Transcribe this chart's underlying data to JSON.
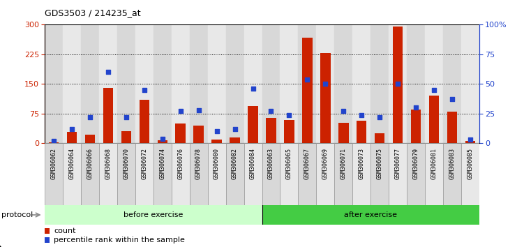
{
  "title": "GDS3503 / 214235_at",
  "categories": [
    "GSM306062",
    "GSM306064",
    "GSM306066",
    "GSM306068",
    "GSM306070",
    "GSM306072",
    "GSM306074",
    "GSM306076",
    "GSM306078",
    "GSM306080",
    "GSM306082",
    "GSM306084",
    "GSM306063",
    "GSM306065",
    "GSM306067",
    "GSM306069",
    "GSM306071",
    "GSM306073",
    "GSM306075",
    "GSM306077",
    "GSM306079",
    "GSM306081",
    "GSM306083",
    "GSM306085"
  ],
  "count_values": [
    3,
    28,
    22,
    140,
    30,
    110,
    8,
    50,
    45,
    10,
    14,
    95,
    65,
    58,
    268,
    228,
    52,
    57,
    25,
    295,
    85,
    120,
    80,
    5
  ],
  "percentile_values": [
    2,
    12,
    22,
    60,
    22,
    45,
    4,
    27,
    28,
    10,
    12,
    46,
    27,
    24,
    54,
    50,
    27,
    24,
    22,
    50,
    30,
    45,
    37,
    3
  ],
  "before_exercise_count": 12,
  "after_exercise_count": 12,
  "bar_color": "#cc2200",
  "dot_color": "#2244cc",
  "before_bg": "#ccffcc",
  "after_bg": "#44cc44",
  "xtick_bg_even": "#d8d8d8",
  "xtick_bg_odd": "#e8e8e8",
  "protocol_label": "protocol",
  "before_label": "before exercise",
  "after_label": "after exercise",
  "legend_count": "count",
  "legend_percentile": "percentile rank within the sample",
  "ylim_left": [
    0,
    300
  ],
  "ylim_right": [
    0,
    100
  ],
  "yticks_left": [
    0,
    75,
    150,
    225,
    300
  ],
  "yticks_right": [
    0,
    25,
    50,
    75,
    100
  ],
  "ytick_labels_right": [
    "0",
    "25",
    "50",
    "75",
    "100%"
  ]
}
